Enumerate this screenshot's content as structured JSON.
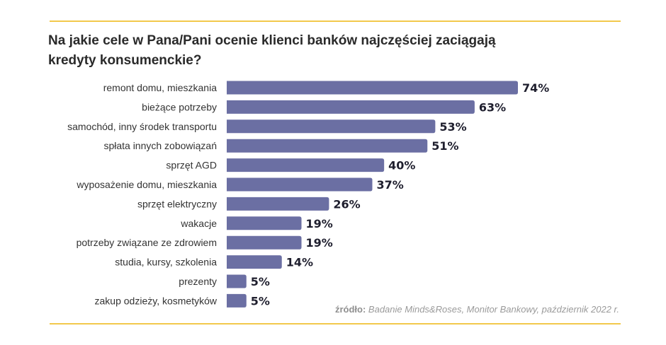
{
  "title": "Na jakie cele w Pana/Pani ocenie klienci banków najczęściej zaciągają kredyty konsumenckie?",
  "source": {
    "label": "źródło:",
    "text": "Badanie Minds&Roses, Monitor Bankowy, październik 2022 r."
  },
  "colors": {
    "bar": "#6b6fa3",
    "rule": "#f2c94c",
    "label": "#333333",
    "value": "#1f1f2e"
  },
  "chart_data": {
    "type": "bar",
    "orientation": "horizontal",
    "unit": "%",
    "categories": [
      "remont domu, mieszkania",
      "bieżące potrzeby",
      "samochód, inny środek transportu",
      "spłata innych zobowiązań",
      "sprzęt AGD",
      "wyposażenie domu, mieszkania",
      "sprzęt elektryczny",
      "wakacje",
      "potrzeby związane ze zdrowiem",
      "studia, kursy, szkolenia",
      "prezenty",
      "zakup odzieży, kosmetyków"
    ],
    "values": [
      74,
      63,
      53,
      51,
      40,
      37,
      26,
      19,
      19,
      14,
      5,
      5
    ],
    "value_labels": [
      "74%",
      "63%",
      "53%",
      "51%",
      "40%",
      "37%",
      "26%",
      "19%",
      "19%",
      "14%",
      "5%",
      "5%"
    ],
    "xlim": [
      0,
      74
    ],
    "grid": false,
    "legend": "none"
  }
}
